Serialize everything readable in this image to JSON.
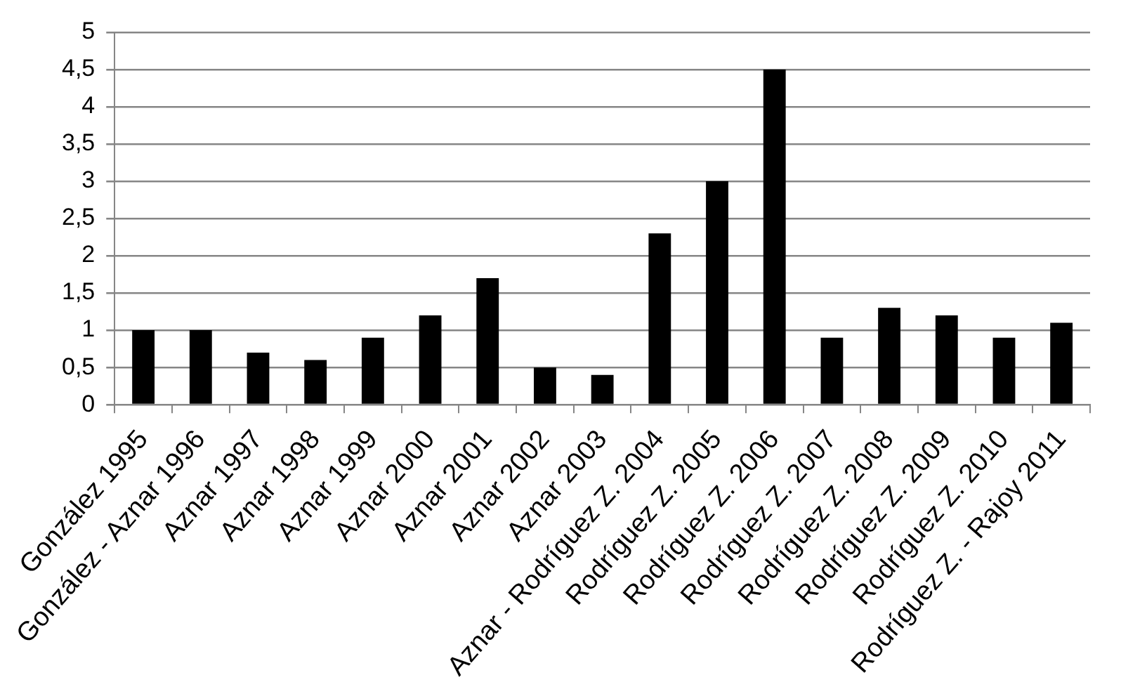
{
  "chart_data": {
    "type": "bar",
    "categories": [
      "González 1995",
      "González - Aznar 1996",
      "Aznar 1997",
      "Aznar 1998",
      "Aznar 1999",
      "Aznar 2000",
      "Aznar 2001",
      "Aznar 2002",
      "Aznar 2003",
      "Aznar - Rodríguez Z. 2004",
      "Rodríguez Z. 2005",
      "Rodríguez Z. 2006",
      "Rodríguez Z. 2007",
      "Rodríguez Z. 2008",
      "Rodríguez Z. 2009",
      "Rodríguez Z. 2010",
      "Rodríguez Z. - Rajoy 2011"
    ],
    "values": [
      1,
      1,
      0.7,
      0.6,
      0.9,
      1.2,
      1.7,
      0.5,
      0.4,
      2.3,
      3,
      4.5,
      0.9,
      1.3,
      1.2,
      0.9,
      1.1
    ],
    "color": "#000000",
    "ylim": [
      0,
      5
    ],
    "yticks": [
      0,
      {
        "value": 0.5,
        "label": "0,5"
      },
      1,
      {
        "value": 1.5,
        "label": "1,5"
      },
      2,
      {
        "value": 2.5,
        "label": "2,5"
      },
      3,
      {
        "value": 3.5,
        "label": "3,5"
      },
      4,
      {
        "value": 4.5,
        "label": "4,5"
      },
      5
    ],
    "grid": "y"
  }
}
